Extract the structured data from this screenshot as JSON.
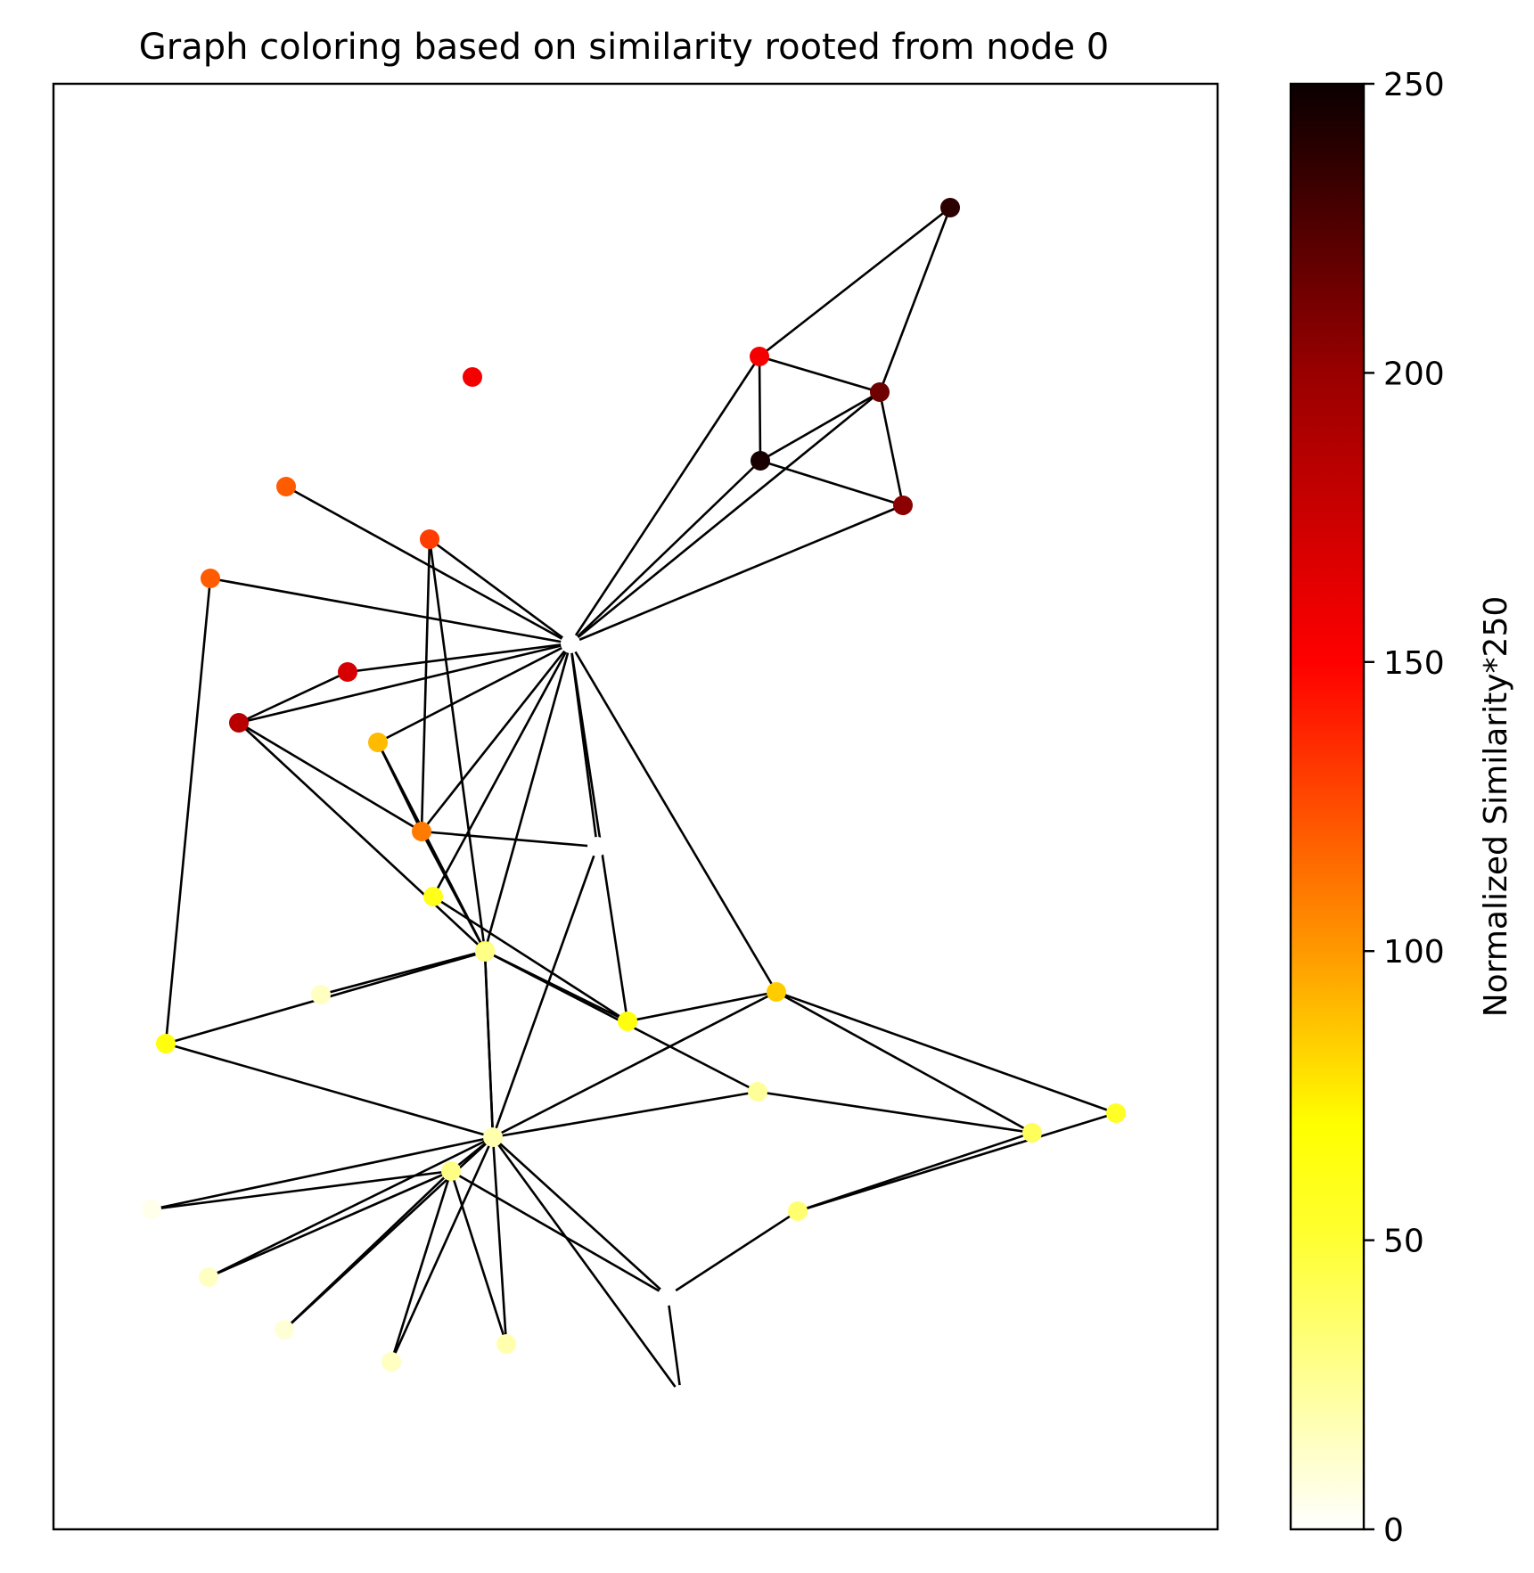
{
  "title": "Graph coloring based on similarity rooted from node 0",
  "colorbar": {
    "label": "Normalized Similarity*250",
    "colormap": "hot_r",
    "range": [
      0,
      250
    ],
    "ticks": [
      "0",
      "50",
      "100",
      "150",
      "200",
      "250"
    ],
    "tick_values": [
      0,
      50,
      100,
      150,
      200,
      250
    ]
  },
  "graph": {
    "root_node": 0,
    "nodes": [
      {
        "id": 0,
        "value": 0
      },
      {
        "id": 1,
        "value": 155
      },
      {
        "id": 2,
        "value": 238
      },
      {
        "id": 3,
        "value": 215
      },
      {
        "id": 4,
        "value": 155
      },
      {
        "id": 5,
        "value": 245
      },
      {
        "id": 6,
        "value": 205
      },
      {
        "id": 7,
        "value": 130
      },
      {
        "id": 8,
        "value": 120
      },
      {
        "id": 9,
        "value": 120
      },
      {
        "id": 10,
        "value": 170
      },
      {
        "id": 11,
        "value": 185
      },
      {
        "id": 12,
        "value": 90
      },
      {
        "id": 13,
        "value": 110
      },
      {
        "id": 14,
        "value": 0
      },
      {
        "id": 15,
        "value": 60
      },
      {
        "id": 16,
        "value": 65
      },
      {
        "id": 17,
        "value": 30
      },
      {
        "id": 18,
        "value": 65
      },
      {
        "id": 19,
        "value": 15
      },
      {
        "id": 20,
        "value": 85
      },
      {
        "id": 21,
        "value": 65
      },
      {
        "id": 22,
        "value": 25
      },
      {
        "id": 23,
        "value": 40
      },
      {
        "id": 24,
        "value": 55
      },
      {
        "id": 25,
        "value": 20
      },
      {
        "id": 26,
        "value": 30
      },
      {
        "id": 27,
        "value": 35
      },
      {
        "id": 28,
        "value": 0
      },
      {
        "id": 29,
        "value": 0
      },
      {
        "id": 30,
        "value": 5
      },
      {
        "id": 31,
        "value": 15
      },
      {
        "id": 32,
        "value": 10
      },
      {
        "id": 33,
        "value": 15
      },
      {
        "id": 34,
        "value": 20
      },
      {
        "id": 35,
        "value": 0
      }
    ],
    "edges": [
      [
        0,
        1
      ],
      [
        0,
        3
      ],
      [
        0,
        5
      ],
      [
        0,
        6
      ],
      [
        0,
        7
      ],
      [
        0,
        8
      ],
      [
        0,
        9
      ],
      [
        0,
        10
      ],
      [
        0,
        11
      ],
      [
        0,
        12
      ],
      [
        0,
        13
      ],
      [
        0,
        14
      ],
      [
        0,
        15
      ],
      [
        0,
        16
      ],
      [
        0,
        20
      ],
      [
        0,
        21
      ],
      [
        1,
        2
      ],
      [
        1,
        3
      ],
      [
        1,
        5
      ],
      [
        2,
        3
      ],
      [
        3,
        5
      ],
      [
        3,
        6
      ],
      [
        5,
        6
      ],
      [
        10,
        11
      ],
      [
        11,
        13
      ],
      [
        11,
        16
      ],
      [
        7,
        13
      ],
      [
        7,
        16
      ],
      [
        12,
        13
      ],
      [
        12,
        16
      ],
      [
        13,
        16
      ],
      [
        13,
        14
      ],
      [
        8,
        18
      ],
      [
        18,
        17
      ],
      [
        18,
        25
      ],
      [
        16,
        17
      ],
      [
        16,
        19
      ],
      [
        16,
        21
      ],
      [
        16,
        22
      ],
      [
        16,
        25
      ],
      [
        17,
        25
      ],
      [
        15,
        21
      ],
      [
        20,
        21
      ],
      [
        20,
        24
      ],
      [
        20,
        23
      ],
      [
        20,
        25
      ],
      [
        22,
        25
      ],
      [
        22,
        23
      ],
      [
        23,
        27
      ],
      [
        24,
        27
      ],
      [
        27,
        28
      ],
      [
        28,
        25
      ],
      [
        28,
        29
      ],
      [
        29,
        25
      ],
      [
        14,
        25
      ],
      [
        25,
        26
      ],
      [
        25,
        30
      ],
      [
        25,
        31
      ],
      [
        25,
        32
      ],
      [
        25,
        33
      ],
      [
        25,
        34
      ],
      [
        26,
        30
      ],
      [
        26,
        31
      ],
      [
        26,
        32
      ],
      [
        26,
        33
      ],
      [
        26,
        34
      ],
      [
        26,
        28
      ]
    ]
  }
}
